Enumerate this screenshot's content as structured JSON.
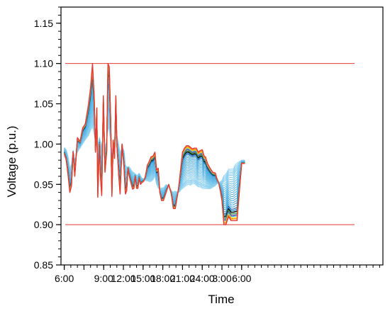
{
  "chart_data": {
    "type": "line",
    "xlabel": "Time",
    "ylabel": "Voltage (p.u.)",
    "x_unit": "hour of simulation, starting 6:00",
    "xlim": [
      -0.5,
      48.5
    ],
    "ylim": [
      0.85,
      1.17
    ],
    "x_ticks": [
      {
        "x": 0,
        "label": "6:00"
      },
      {
        "x": 3,
        "label": ""
      },
      {
        "x": 6,
        "label": "9:00"
      },
      {
        "x": 9,
        "label": "12:00"
      },
      {
        "x": 12,
        "label": "15:00"
      },
      {
        "x": 15,
        "label": "18:00"
      },
      {
        "x": 18,
        "label": "21:00"
      },
      {
        "x": 21,
        "label": "24:00"
      },
      {
        "x": 24,
        "label": "3:00"
      },
      {
        "x": 27,
        "label": "6:00"
      }
    ],
    "y_ticks": [
      0.85,
      0.9,
      0.95,
      1.0,
      1.05,
      1.1,
      1.15
    ],
    "y_tick_labels": [
      "0.85",
      "0.90",
      "0.95",
      "1.00",
      "1.05",
      "1.10",
      "1.15"
    ],
    "minor_y_step": 0.01,
    "reference_lines": [
      {
        "y": 1.1,
        "color": "#e53935"
      },
      {
        "y": 0.9,
        "color": "#e53935"
      }
    ],
    "series_template": {
      "x": [
        0,
        0.3,
        0.6,
        0.85,
        1.1,
        1.35,
        1.6,
        2.0,
        2.4,
        2.8,
        3.2,
        3.7,
        4.0,
        4.3,
        4.55,
        4.75,
        4.95,
        5.1,
        5.35,
        5.5,
        5.7,
        5.95,
        6.2,
        6.45,
        6.65,
        6.85,
        7.05,
        7.25,
        7.45,
        7.65,
        7.85,
        8.0,
        8.3,
        8.5,
        8.8,
        9.1,
        9.3,
        9.5,
        9.7,
        9.9,
        10.2,
        10.4,
        10.6,
        10.8,
        11.0,
        11.2,
        11.4,
        11.6,
        11.8,
        12.1,
        12.35,
        12.65,
        12.9,
        13.2,
        13.5,
        13.8,
        14.05,
        14.3,
        14.55,
        14.8,
        15.1,
        15.5,
        15.9,
        16.3,
        16.6,
        16.9,
        17.2,
        17.4,
        17.6,
        17.8,
        18.0,
        18.3,
        18.6,
        18.9,
        19.2,
        19.5,
        19.8,
        20.1,
        20.4,
        20.7,
        21.0,
        21.3,
        21.5,
        21.8,
        22.2,
        22.6,
        23.0,
        23.2,
        23.5,
        23.8,
        24.0,
        24.3,
        24.6,
        25.0,
        25.4,
        25.7,
        26.0,
        26.3,
        27.0,
        27.5
      ],
      "base": [
        0.996,
        0.993,
        0.984,
        0.97,
        0.976,
        0.992,
        0.98,
        0.99,
        0.995,
        1.0,
        1.005,
        1.01,
        1.016,
        1.02,
        1.012,
        1.005,
        1.018,
        0.998,
        1.008,
        1.004,
        0.998,
        1.012,
        0.998,
        1.003,
        1.02,
        1.015,
        1.003,
        0.993,
        0.996,
        0.998,
        1.01,
        1.012,
        0.999,
        0.99,
        0.997,
        0.992,
        0.975,
        0.972,
        0.972,
        0.972,
        0.968,
        0.966,
        0.965,
        0.963,
        0.962,
        0.962,
        0.964,
        0.961,
        0.958,
        0.957,
        0.955,
        0.954,
        0.953,
        0.953,
        0.955,
        0.96,
        0.95,
        0.945,
        0.944,
        0.946,
        0.946,
        0.95,
        0.948,
        0.942,
        0.941,
        0.942,
        0.941,
        0.94,
        0.941,
        0.943,
        0.944,
        0.946,
        0.948,
        0.949,
        0.948,
        0.95,
        0.95,
        0.948,
        0.946,
        0.946,
        0.944,
        0.944,
        0.944,
        0.944,
        0.944,
        0.946,
        0.948,
        0.95,
        0.952,
        0.954,
        0.955,
        0.962,
        0.964,
        0.97,
        0.97,
        0.97,
        0.975,
        0.978,
        0.98,
        0.98
      ],
      "peak": [
        0.988,
        0.98,
        0.96,
        0.94,
        0.948,
        0.99,
        0.96,
        1.008,
        1.003,
        1.02,
        1.025,
        1.05,
        1.07,
        1.1,
        1.06,
        0.99,
        1.045,
        0.934,
        1.0,
        0.96,
        0.936,
        1.06,
        0.965,
        0.99,
        1.1,
        1.096,
        1.035,
        0.935,
        1.005,
        0.982,
        1.06,
        1.0,
        0.96,
        0.938,
        1.0,
        0.97,
        0.938,
        0.942,
        0.97,
        0.96,
        0.95,
        0.944,
        0.945,
        0.96,
        0.945,
        0.945,
        0.958,
        0.95,
        0.952,
        0.954,
        0.96,
        0.974,
        0.978,
        0.984,
        0.985,
        0.99,
        0.968,
        0.97,
        0.94,
        0.93,
        0.93,
        0.94,
        0.95,
        0.938,
        0.92,
        0.92,
        0.935,
        0.945,
        0.96,
        0.975,
        0.99,
        0.995,
        0.998,
        0.998,
        0.996,
        0.994,
        0.995,
        0.995,
        0.99,
        0.992,
        0.993,
        0.985,
        0.984,
        0.976,
        0.97,
        0.965,
        0.964,
        0.958,
        0.952,
        0.94,
        0.93,
        0.9,
        0.9,
        0.91,
        0.905,
        0.905,
        0.905,
        0.905,
        0.9,
        0.9
      ],
      "end": [
        0.97,
        0.967,
        0.964,
        0.964,
        0.966,
        0.968,
        0.968,
        0.97,
        0.968,
        0.968,
        0.972,
        0.976,
        0.98,
        0.98,
        0.975,
        0.974,
        0.976,
        0.978,
        0.979,
        0.98,
        0.981,
        0.982,
        0.982,
        0.983,
        0.984,
        0.985,
        0.986,
        0.986,
        0.986,
        0.986,
        0.986,
        0.985,
        0.984,
        0.983,
        0.982,
        0.981,
        0.98,
        0.979,
        0.978,
        0.977,
        0.976,
        0.976,
        0.976,
        0.976,
        0.976,
        0.976,
        0.976,
        0.976,
        0.976,
        0.976,
        0.976,
        0.976,
        0.976,
        0.976,
        0.976,
        0.976,
        0.976,
        0.976,
        0.976,
        0.976,
        0.976,
        0.976,
        0.976,
        0.976,
        0.976,
        0.976,
        0.976,
        0.976,
        0.976,
        0.976,
        0.976,
        0.976,
        0.976,
        0.976,
        0.976,
        0.976,
        0.976,
        0.976,
        0.976,
        0.976,
        0.976,
        0.976,
        0.976,
        0.976,
        0.976,
        0.976,
        0.976,
        0.976,
        0.976,
        0.976,
        0.976,
        0.976,
        0.976,
        0.976,
        0.976,
        0.976,
        0.976,
        0.976,
        0.976,
        0.976
      ]
    },
    "series": [
      {
        "color": "#9bd7f3",
        "w": 0.02
      },
      {
        "color": "#9bd7f3",
        "w": 0.05
      },
      {
        "color": "#8fd1f0",
        "w": 0.08
      },
      {
        "color": "#8fd1f0",
        "w": 0.11
      },
      {
        "color": "#86cdee",
        "w": 0.14
      },
      {
        "color": "#86cdee",
        "w": 0.18
      },
      {
        "color": "#7fc8ec",
        "w": 0.22
      },
      {
        "color": "#7fc8ec",
        "w": 0.26
      },
      {
        "color": "#73c2ea",
        "w": 0.3
      },
      {
        "color": "#73c2ea",
        "w": 0.34
      },
      {
        "color": "#6bbde7",
        "w": 0.38
      },
      {
        "color": "#6bbde7",
        "w": 0.42
      },
      {
        "color": "#63b9e6",
        "w": 0.46
      },
      {
        "color": "#63b9e6",
        "w": 0.5
      },
      {
        "color": "#5bb4e3",
        "w": 0.54
      },
      {
        "color": "#5bb4e3",
        "w": 0.58
      },
      {
        "color": "#54b0e1",
        "w": 0.62
      },
      {
        "color": "#54b0e1",
        "w": 0.66
      },
      {
        "color": "#4ba9de",
        "w": 0.7
      },
      {
        "color": "#4ba9de",
        "w": 0.74
      },
      {
        "color": "#1f5fae",
        "w": 0.78
      },
      {
        "color": "#2a8fd0",
        "w": 0.81
      },
      {
        "color": "#000000",
        "w": 0.84
      },
      {
        "color": "#3f9d3a",
        "w": 0.87
      },
      {
        "color": "#6a3fa3",
        "w": 0.9
      },
      {
        "color": "#4ba9de",
        "w": 0.92
      },
      {
        "color": "#ffd400",
        "w": 0.95
      },
      {
        "color": "#f08a1c",
        "w": 0.97
      },
      {
        "color": "#e53935",
        "w": 1.0
      }
    ]
  }
}
